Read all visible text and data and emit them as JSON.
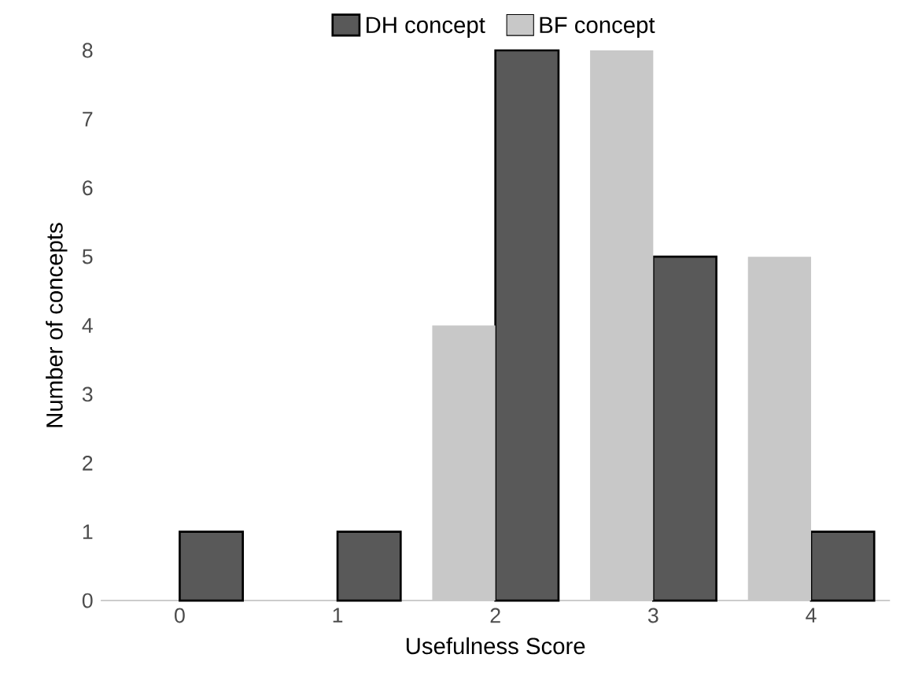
{
  "chart_data": {
    "type": "bar",
    "xlabel": "Usefulness Score",
    "ylabel": "Number of concepts",
    "categories": [
      "0",
      "1",
      "2",
      "3",
      "4"
    ],
    "series": [
      {
        "name": "DH concept",
        "color": "#595959",
        "values": [
          1,
          1,
          8,
          5,
          1
        ]
      },
      {
        "name": "BF concept",
        "color": "#c8c8c8",
        "values": [
          0,
          0,
          4,
          8,
          5
        ]
      }
    ],
    "ylim": [
      0,
      8
    ],
    "yticks": [
      0,
      1,
      2,
      3,
      4,
      5,
      6,
      7,
      8
    ],
    "legend": "top",
    "grid": false
  }
}
